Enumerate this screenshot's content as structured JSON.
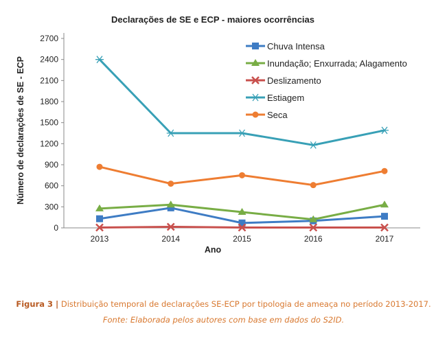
{
  "chart_data": {
    "type": "line",
    "title": "Declarações de SE e ECP - maiores ocorrências",
    "xlabel": "Ano",
    "ylabel": "Número de declarações de SE - ECP",
    "x": [
      "2013",
      "2014",
      "2015",
      "2016",
      "2017"
    ],
    "ylim": [
      0,
      2700
    ],
    "yticks": [
      0,
      300,
      600,
      900,
      1200,
      1500,
      1800,
      2100,
      2400,
      2700
    ],
    "grid": false,
    "legend_position": "top-right",
    "series": [
      {
        "name": "Chuva Intensa",
        "color": "#3e7cc4",
        "marker": "square",
        "values": [
          130,
          285,
          70,
          100,
          165
        ]
      },
      {
        "name": "Inundação; Enxurrada; Alagamento",
        "color": "#78ad45",
        "marker": "triangle",
        "values": [
          275,
          330,
          225,
          120,
          330
        ]
      },
      {
        "name": "Deslizamento",
        "color": "#c8504d",
        "marker": "x",
        "values": [
          5,
          15,
          5,
          5,
          5
        ]
      },
      {
        "name": "Estiagem",
        "color": "#38a0b6",
        "marker": "star",
        "values": [
          2400,
          1350,
          1350,
          1180,
          1390
        ]
      },
      {
        "name": "Seca",
        "color": "#ee7d32",
        "marker": "circle",
        "values": [
          870,
          630,
          750,
          610,
          810
        ]
      }
    ]
  },
  "caption": {
    "figure_label": "Figura 3 |",
    "text": "Distribuição temporal de declarações SE-ECP por tipologia de ameaça no período 2013-2017.",
    "source": "Fonte: Elaborada pelos autores com base em dados do S2ID."
  }
}
